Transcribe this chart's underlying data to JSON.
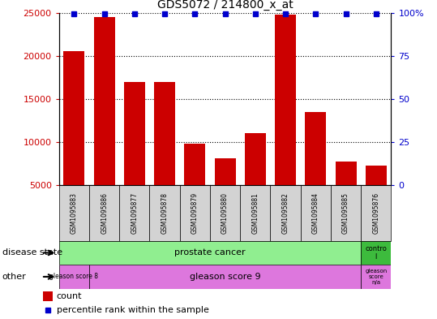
{
  "title": "GDS5072 / 214800_x_at",
  "samples": [
    "GSM1095883",
    "GSM1095886",
    "GSM1095877",
    "GSM1095878",
    "GSM1095879",
    "GSM1095880",
    "GSM1095881",
    "GSM1095882",
    "GSM1095884",
    "GSM1095885",
    "GSM1095876"
  ],
  "counts": [
    20500,
    24500,
    17000,
    17000,
    9800,
    8100,
    11000,
    24800,
    13500,
    7700,
    7300
  ],
  "ylim_left": [
    5000,
    25000
  ],
  "ylim_right": [
    0,
    100
  ],
  "yticks_left": [
    5000,
    10000,
    15000,
    20000,
    25000
  ],
  "yticks_right": [
    0,
    25,
    50,
    75,
    100
  ],
  "bar_color": "#cc0000",
  "percentile_color": "#0000cc",
  "title_fontsize": 10,
  "disease_state_label": "disease state",
  "disease_state_prostate": "prostate cancer",
  "disease_state_control": "contro\nl",
  "other_label": "other",
  "gleason8": "gleason score 8",
  "gleason9": "gleason score 9",
  "gleason_na": "gleason\nscore\nn/a",
  "legend_count": "count",
  "legend_percentile": "percentile rank within the sample",
  "prostate_color": "#90ee90",
  "control_color": "#3dbb3d",
  "gleason_color": "#dd77dd",
  "tick_bg_color": "#d3d3d3",
  "n_prostate": 10,
  "n_control": 1,
  "n_gleason8": 1,
  "n_gleason9": 9,
  "n_gleason_na": 1
}
